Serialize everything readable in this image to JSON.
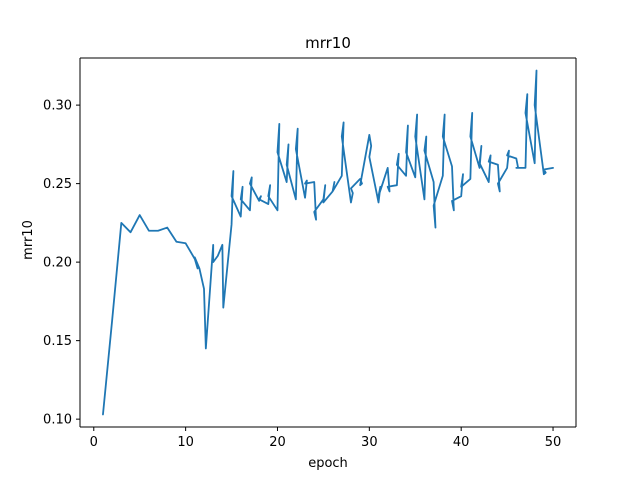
{
  "chart_data": {
    "type": "line",
    "title": "mrr10",
    "xlabel": "epoch",
    "ylabel": "mrr10",
    "xlim": [
      -1.5,
      52.5
    ],
    "ylim": [
      0.095,
      0.33
    ],
    "xticks": [
      0,
      10,
      20,
      30,
      40,
      50
    ],
    "yticks": [
      0.1,
      0.15,
      0.2,
      0.25,
      0.3
    ],
    "ytick_labels": [
      "0.10",
      "0.15",
      "0.20",
      "0.25",
      "0.30"
    ],
    "grid": false,
    "color": "#1f77b4",
    "series": [
      {
        "x": [
          1,
          2,
          3,
          4,
          5,
          6,
          7,
          8,
          9,
          10,
          11,
          11.3,
          11,
          11.5,
          12,
          12.2,
          13,
          13,
          13.5,
          14,
          14.1,
          15,
          15.2,
          15,
          16,
          16.2,
          16,
          17,
          17.2,
          17,
          18,
          18.2,
          18,
          19,
          19.2,
          19,
          20,
          20.2,
          20,
          21,
          21.2,
          21,
          22,
          22.2,
          22,
          23,
          23.2,
          23,
          24,
          24.2,
          24,
          25,
          25.2,
          25,
          26,
          26.2,
          26,
          27,
          27.2,
          27,
          28,
          28.2,
          28,
          29,
          29.2,
          29,
          30,
          30.2,
          30,
          31,
          31.2,
          31,
          32,
          32.2,
          32,
          33,
          33.2,
          33,
          34,
          34.2,
          34,
          35,
          35.2,
          35,
          36,
          36.2,
          36,
          37,
          37.2,
          37,
          38,
          38.2,
          38,
          39,
          39.2,
          39,
          40,
          40.2,
          40,
          41,
          41.2,
          41,
          42,
          42.2,
          42,
          43,
          43.2,
          43,
          44,
          44.2,
          44,
          45,
          45.2,
          45,
          46,
          46.2,
          46,
          47,
          47.2,
          47,
          48,
          48.2,
          48,
          49,
          49.2,
          49,
          50
        ],
        "y": [
          0.103,
          0.163,
          0.225,
          0.219,
          0.23,
          0.22,
          0.22,
          0.222,
          0.213,
          0.212,
          0.202,
          0.196,
          0.203,
          0.196,
          0.183,
          0.145,
          0.211,
          0.2,
          0.204,
          0.211,
          0.171,
          0.224,
          0.258,
          0.242,
          0.229,
          0.248,
          0.24,
          0.233,
          0.254,
          0.25,
          0.239,
          0.242,
          0.24,
          0.237,
          0.249,
          0.242,
          0.233,
          0.288,
          0.27,
          0.251,
          0.275,
          0.262,
          0.24,
          0.285,
          0.272,
          0.241,
          0.252,
          0.25,
          0.251,
          0.227,
          0.232,
          0.24,
          0.249,
          0.238,
          0.245,
          0.251,
          0.245,
          0.255,
          0.289,
          0.28,
          0.238,
          0.244,
          0.247,
          0.253,
          0.25,
          0.249,
          0.281,
          0.274,
          0.267,
          0.238,
          0.248,
          0.242,
          0.26,
          0.245,
          0.248,
          0.249,
          0.269,
          0.262,
          0.255,
          0.287,
          0.27,
          0.254,
          0.294,
          0.28,
          0.24,
          0.28,
          0.271,
          0.251,
          0.222,
          0.236,
          0.255,
          0.294,
          0.28,
          0.261,
          0.233,
          0.239,
          0.242,
          0.256,
          0.248,
          0.253,
          0.295,
          0.28,
          0.26,
          0.274,
          0.263,
          0.251,
          0.268,
          0.264,
          0.262,
          0.245,
          0.25,
          0.26,
          0.271,
          0.268,
          0.266,
          0.26,
          0.26,
          0.26,
          0.307,
          0.295,
          0.263,
          0.322,
          0.3,
          0.256,
          0.257,
          0.259,
          0.26
        ]
      }
    ]
  }
}
